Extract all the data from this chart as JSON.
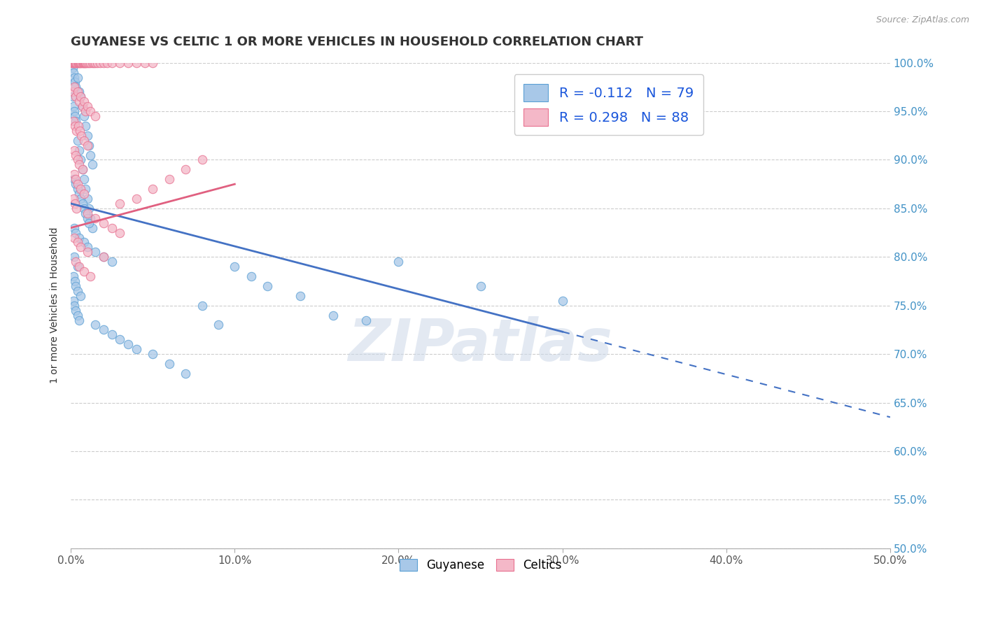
{
  "title": "GUYANESE VS CELTIC 1 OR MORE VEHICLES IN HOUSEHOLD CORRELATION CHART",
  "source": "Source: ZipAtlas.com",
  "ylabel": "1 or more Vehicles in Household",
  "xlim": [
    0.0,
    50.0
  ],
  "ylim": [
    50.0,
    100.0
  ],
  "xticks": [
    0.0,
    10.0,
    20.0,
    30.0,
    40.0,
    50.0
  ],
  "yticks": [
    50.0,
    55.0,
    60.0,
    65.0,
    70.0,
    75.0,
    80.0,
    85.0,
    90.0,
    95.0,
    100.0
  ],
  "xtick_labels": [
    "0.0%",
    "10.0%",
    "20.0%",
    "30.0%",
    "40.0%",
    "50.0%"
  ],
  "ytick_labels": [
    "50.0%",
    "55.0%",
    "60.0%",
    "65.0%",
    "70.0%",
    "75.0%",
    "80.0%",
    "85.0%",
    "90.0%",
    "95.0%",
    "100.0%"
  ],
  "legend_labels_bottom": [
    "Guyanese",
    "Celtics"
  ],
  "watermark": "ZIPatlas",
  "blue_R": -0.112,
  "blue_N": 79,
  "pink_R": 0.298,
  "pink_N": 88,
  "blue_color": "#a8c8e8",
  "pink_color": "#f4b8c8",
  "blue_edge_color": "#5a9fd4",
  "pink_edge_color": "#e87090",
  "blue_line_color": "#4472c4",
  "pink_line_color": "#e06080",
  "title_color": "#333333",
  "title_fontsize": 13,
  "axis_label_color": "#333333",
  "tick_color": "#555555",
  "grid_color": "#cccccc",
  "right_ytick_color": "#4292c6",
  "watermark_color": "#ccd8e8",
  "watermark_alpha": 0.55,
  "watermark_fontsize": 60,
  "blue_trend_x": [
    0.0,
    30.0,
    50.0
  ],
  "blue_trend_y": [
    85.5,
    77.5,
    63.5
  ],
  "blue_solid_end": 30.0,
  "pink_trend_x": [
    0.0,
    10.0
  ],
  "pink_trend_y": [
    83.0,
    87.5
  ],
  "blue_scatter": [
    [
      0.1,
      99.5
    ],
    [
      0.15,
      99.0
    ],
    [
      0.2,
      98.5
    ],
    [
      0.25,
      98.0
    ],
    [
      0.3,
      97.5
    ],
    [
      0.1,
      96.5
    ],
    [
      0.15,
      95.5
    ],
    [
      0.2,
      95.0
    ],
    [
      0.25,
      94.5
    ],
    [
      0.3,
      94.0
    ],
    [
      0.4,
      98.5
    ],
    [
      0.5,
      97.0
    ],
    [
      0.6,
      96.5
    ],
    [
      0.7,
      95.5
    ],
    [
      0.8,
      94.5
    ],
    [
      0.9,
      93.5
    ],
    [
      1.0,
      92.5
    ],
    [
      1.1,
      91.5
    ],
    [
      1.2,
      90.5
    ],
    [
      1.3,
      89.5
    ],
    [
      0.4,
      92.0
    ],
    [
      0.5,
      91.0
    ],
    [
      0.6,
      90.0
    ],
    [
      0.7,
      89.0
    ],
    [
      0.8,
      88.0
    ],
    [
      0.9,
      87.0
    ],
    [
      1.0,
      86.0
    ],
    [
      1.1,
      85.0
    ],
    [
      1.2,
      84.0
    ],
    [
      1.3,
      83.0
    ],
    [
      0.2,
      88.0
    ],
    [
      0.3,
      87.5
    ],
    [
      0.4,
      87.0
    ],
    [
      0.5,
      86.5
    ],
    [
      0.6,
      86.0
    ],
    [
      0.7,
      85.5
    ],
    [
      0.8,
      85.0
    ],
    [
      0.9,
      84.5
    ],
    [
      1.0,
      84.0
    ],
    [
      1.1,
      83.5
    ],
    [
      0.2,
      83.0
    ],
    [
      0.3,
      82.5
    ],
    [
      0.5,
      82.0
    ],
    [
      0.8,
      81.5
    ],
    [
      1.0,
      81.0
    ],
    [
      1.5,
      80.5
    ],
    [
      2.0,
      80.0
    ],
    [
      2.5,
      79.5
    ],
    [
      0.2,
      80.0
    ],
    [
      0.4,
      79.0
    ],
    [
      0.15,
      78.0
    ],
    [
      0.25,
      77.5
    ],
    [
      0.3,
      77.0
    ],
    [
      0.4,
      76.5
    ],
    [
      0.6,
      76.0
    ],
    [
      0.15,
      75.5
    ],
    [
      0.2,
      75.0
    ],
    [
      0.3,
      74.5
    ],
    [
      0.4,
      74.0
    ],
    [
      0.5,
      73.5
    ],
    [
      1.5,
      73.0
    ],
    [
      2.0,
      72.5
    ],
    [
      2.5,
      72.0
    ],
    [
      3.0,
      71.5
    ],
    [
      3.5,
      71.0
    ],
    [
      4.0,
      70.5
    ],
    [
      5.0,
      70.0
    ],
    [
      6.0,
      69.0
    ],
    [
      7.0,
      68.0
    ],
    [
      8.0,
      75.0
    ],
    [
      9.0,
      73.0
    ],
    [
      10.0,
      79.0
    ],
    [
      11.0,
      78.0
    ],
    [
      12.0,
      77.0
    ],
    [
      14.0,
      76.0
    ],
    [
      16.0,
      74.0
    ],
    [
      18.0,
      73.5
    ],
    [
      20.0,
      79.5
    ],
    [
      25.0,
      77.0
    ],
    [
      30.0,
      75.5
    ]
  ],
  "pink_scatter": [
    [
      0.05,
      100.0
    ],
    [
      0.1,
      100.0
    ],
    [
      0.15,
      100.0
    ],
    [
      0.2,
      100.0
    ],
    [
      0.25,
      100.0
    ],
    [
      0.3,
      100.0
    ],
    [
      0.35,
      100.0
    ],
    [
      0.4,
      100.0
    ],
    [
      0.45,
      100.0
    ],
    [
      0.5,
      100.0
    ],
    [
      0.55,
      100.0
    ],
    [
      0.6,
      100.0
    ],
    [
      0.65,
      100.0
    ],
    [
      0.7,
      100.0
    ],
    [
      0.75,
      100.0
    ],
    [
      0.8,
      100.0
    ],
    [
      0.85,
      100.0
    ],
    [
      0.9,
      100.0
    ],
    [
      0.95,
      100.0
    ],
    [
      1.0,
      100.0
    ],
    [
      1.1,
      100.0
    ],
    [
      1.2,
      100.0
    ],
    [
      1.3,
      100.0
    ],
    [
      1.4,
      100.0
    ],
    [
      1.5,
      100.0
    ],
    [
      1.6,
      100.0
    ],
    [
      1.8,
      100.0
    ],
    [
      2.0,
      100.0
    ],
    [
      2.2,
      100.0
    ],
    [
      2.5,
      100.0
    ],
    [
      3.0,
      100.0
    ],
    [
      3.5,
      100.0
    ],
    [
      4.0,
      100.0
    ],
    [
      4.5,
      100.0
    ],
    [
      5.0,
      100.0
    ],
    [
      0.1,
      97.0
    ],
    [
      0.2,
      97.5
    ],
    [
      0.3,
      96.5
    ],
    [
      0.4,
      97.0
    ],
    [
      0.5,
      96.0
    ],
    [
      0.6,
      96.5
    ],
    [
      0.7,
      95.5
    ],
    [
      0.8,
      96.0
    ],
    [
      0.9,
      95.0
    ],
    [
      1.0,
      95.5
    ],
    [
      1.2,
      95.0
    ],
    [
      1.5,
      94.5
    ],
    [
      0.15,
      94.0
    ],
    [
      0.25,
      93.5
    ],
    [
      0.35,
      93.0
    ],
    [
      0.45,
      93.5
    ],
    [
      0.55,
      93.0
    ],
    [
      0.65,
      92.5
    ],
    [
      0.8,
      92.0
    ],
    [
      1.0,
      91.5
    ],
    [
      0.2,
      91.0
    ],
    [
      0.3,
      90.5
    ],
    [
      0.4,
      90.0
    ],
    [
      0.5,
      89.5
    ],
    [
      0.7,
      89.0
    ],
    [
      0.2,
      88.5
    ],
    [
      0.3,
      88.0
    ],
    [
      0.4,
      87.5
    ],
    [
      0.6,
      87.0
    ],
    [
      0.8,
      86.5
    ],
    [
      0.15,
      86.0
    ],
    [
      0.25,
      85.5
    ],
    [
      0.35,
      85.0
    ],
    [
      1.0,
      84.5
    ],
    [
      1.5,
      84.0
    ],
    [
      2.0,
      83.5
    ],
    [
      2.5,
      83.0
    ],
    [
      3.0,
      82.5
    ],
    [
      0.2,
      82.0
    ],
    [
      0.4,
      81.5
    ],
    [
      0.6,
      81.0
    ],
    [
      1.0,
      80.5
    ],
    [
      2.0,
      80.0
    ],
    [
      3.0,
      85.5
    ],
    [
      4.0,
      86.0
    ],
    [
      5.0,
      87.0
    ],
    [
      6.0,
      88.0
    ],
    [
      7.0,
      89.0
    ],
    [
      8.0,
      90.0
    ],
    [
      0.3,
      79.5
    ],
    [
      0.5,
      79.0
    ],
    [
      0.8,
      78.5
    ],
    [
      1.2,
      78.0
    ]
  ]
}
